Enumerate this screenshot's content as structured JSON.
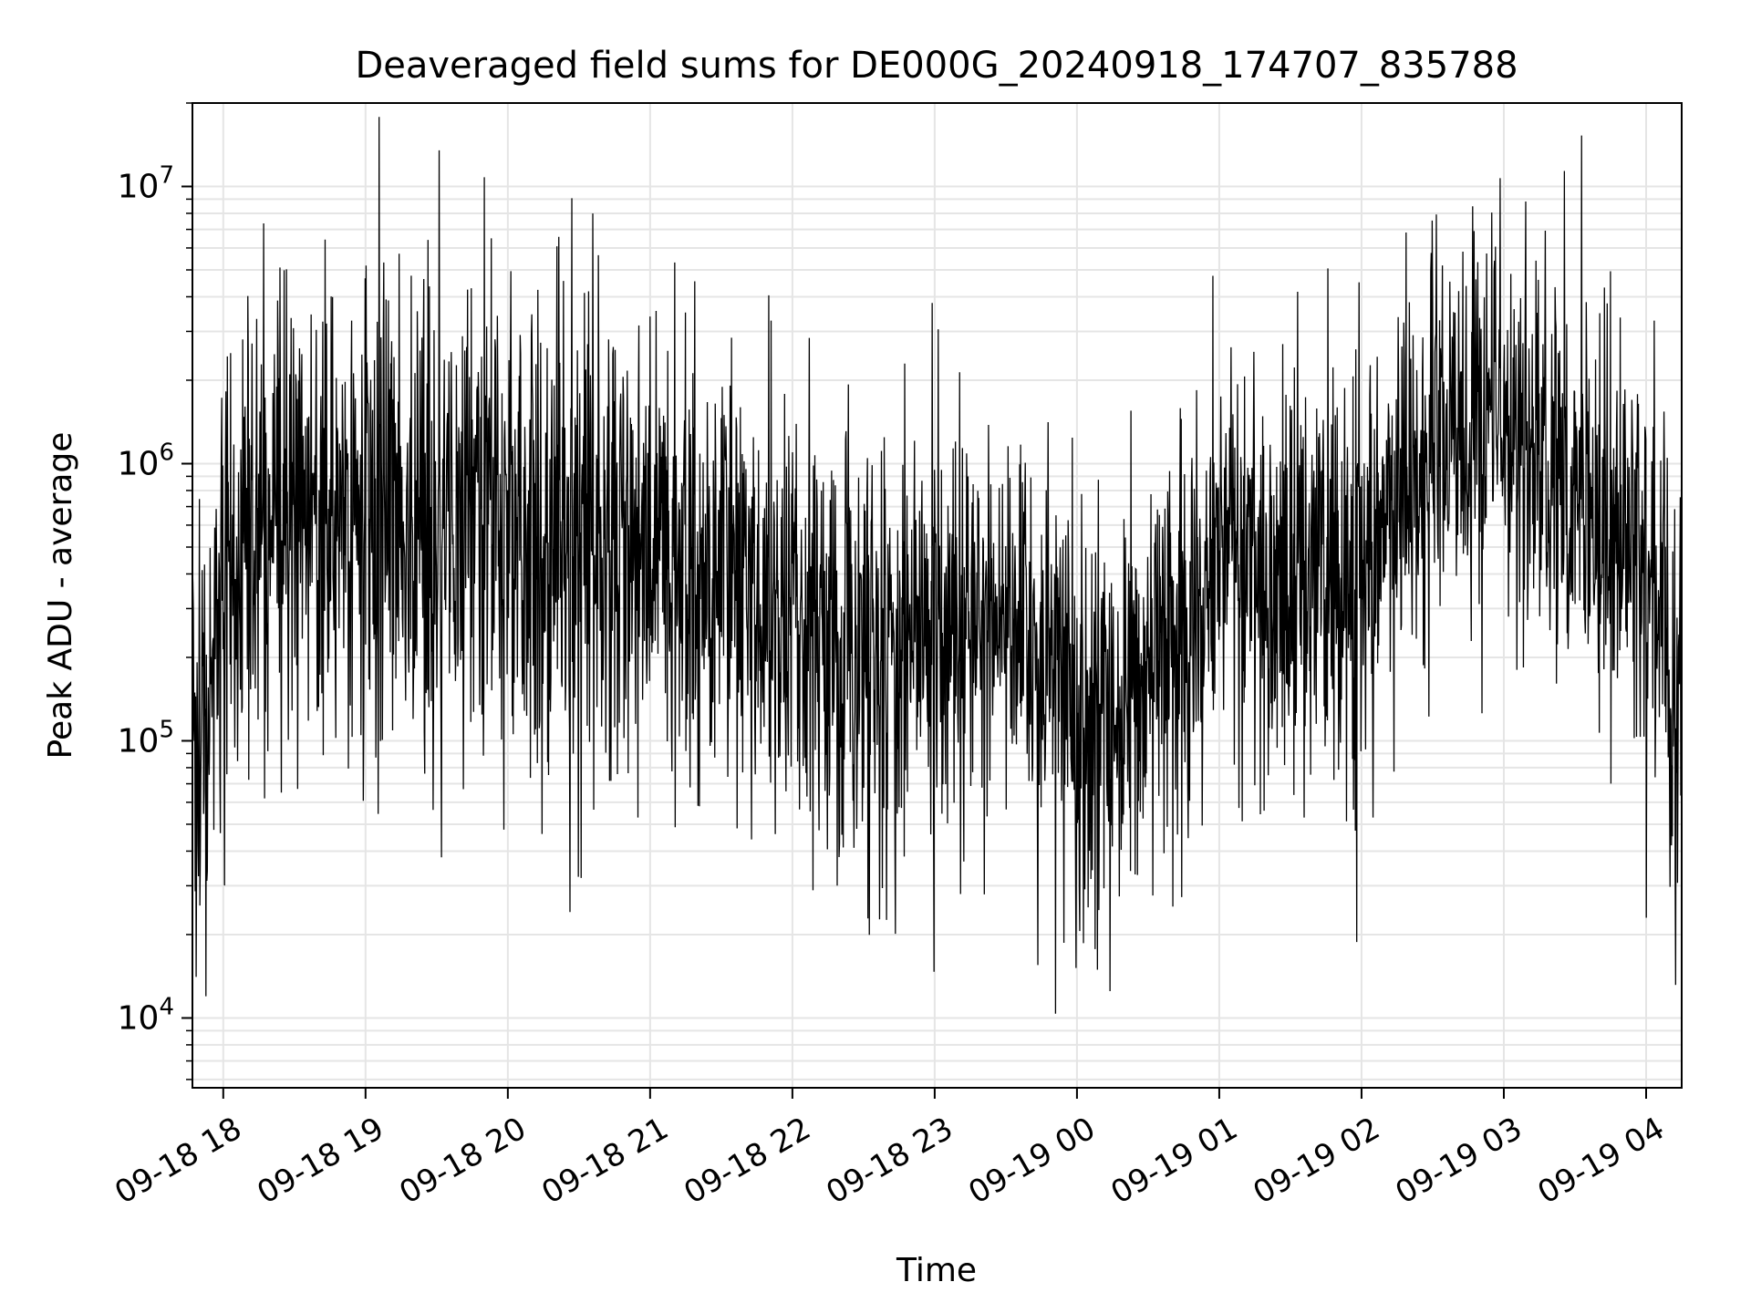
{
  "chart_data": {
    "type": "line",
    "title": "Deaveraged field sums for DE000G_20240918_174707_835788",
    "xlabel": "Time",
    "ylabel": "Peak ADU - average",
    "yscale": "log",
    "ylim": [
      5600,
      20000000
    ],
    "xlim": [
      "2024-09-18 17:47",
      "2024-09-19 04:15"
    ],
    "grid": true,
    "line_color": "#000000",
    "x_ticks": [
      "09-18 18",
      "09-18 19",
      "09-18 20",
      "09-18 21",
      "09-18 22",
      "09-18 23",
      "09-19 00",
      "09-19 01",
      "09-19 02",
      "09-19 03",
      "09-19 04"
    ],
    "y_ticks": [
      {
        "value": 10000,
        "base": "10",
        "exp": "4"
      },
      {
        "value": 100000,
        "base": "10",
        "exp": "5"
      },
      {
        "value": 1000000,
        "base": "10",
        "exp": "6"
      },
      {
        "value": 10000000,
        "base": "10",
        "exp": "7"
      }
    ],
    "envelope": [
      {
        "t": "2024-09-18 17:47",
        "median": 60000,
        "spread": 0.45
      },
      {
        "t": "2024-09-18 17:52",
        "median": 120000,
        "spread": 0.4
      },
      {
        "t": "2024-09-18 18:00",
        "median": 500000,
        "spread": 0.4
      },
      {
        "t": "2024-09-18 18:30",
        "median": 800000,
        "spread": 0.45
      },
      {
        "t": "2024-09-18 19:30",
        "median": 600000,
        "spread": 0.45
      },
      {
        "t": "2024-09-18 20:30",
        "median": 600000,
        "spread": 0.45
      },
      {
        "t": "2024-09-18 21:30",
        "median": 400000,
        "spread": 0.35
      },
      {
        "t": "2024-09-18 22:30",
        "median": 200000,
        "spread": 0.4
      },
      {
        "t": "2024-09-18 23:20",
        "median": 280000,
        "spread": 0.3
      },
      {
        "t": "2024-09-18 23:50",
        "median": 220000,
        "spread": 0.3
      },
      {
        "t": "2024-09-19 00:00",
        "median": 100000,
        "spread": 0.4
      },
      {
        "t": "2024-09-19 00:20",
        "median": 130000,
        "spread": 0.4
      },
      {
        "t": "2024-09-19 01:00",
        "median": 450000,
        "spread": 0.35
      },
      {
        "t": "2024-09-19 02:00",
        "median": 400000,
        "spread": 0.35
      },
      {
        "t": "2024-09-19 02:30",
        "median": 1200000,
        "spread": 0.3
      },
      {
        "t": "2024-09-19 03:00",
        "median": 1500000,
        "spread": 0.3
      },
      {
        "t": "2024-09-19 03:30",
        "median": 800000,
        "spread": 0.35
      },
      {
        "t": "2024-09-19 04:00",
        "median": 400000,
        "spread": 0.4
      },
      {
        "t": "2024-09-19 04:15",
        "median": 120000,
        "spread": 0.4
      }
    ],
    "spikes": [
      {
        "t": "2024-09-18 18:24",
        "value": 5100000
      },
      {
        "t": "2024-09-18 19:31",
        "value": 13500000
      },
      {
        "t": "2024-09-18 19:50",
        "value": 10800000
      },
      {
        "t": "2024-09-18 19:53",
        "value": 6500000
      },
      {
        "t": "2024-09-18 19:32",
        "value": 38000
      },
      {
        "t": "2024-09-18 20:31",
        "value": 32000
      },
      {
        "t": "2024-09-18 22:59",
        "value": 3800000
      },
      {
        "t": "2024-09-18 23:11",
        "value": 28000
      },
      {
        "t": "2024-09-19 00:14",
        "value": 12500
      },
      {
        "t": "2024-09-19 02:56",
        "value": 5400000
      },
      {
        "t": "2024-09-19 04:00",
        "value": 23000
      }
    ]
  }
}
